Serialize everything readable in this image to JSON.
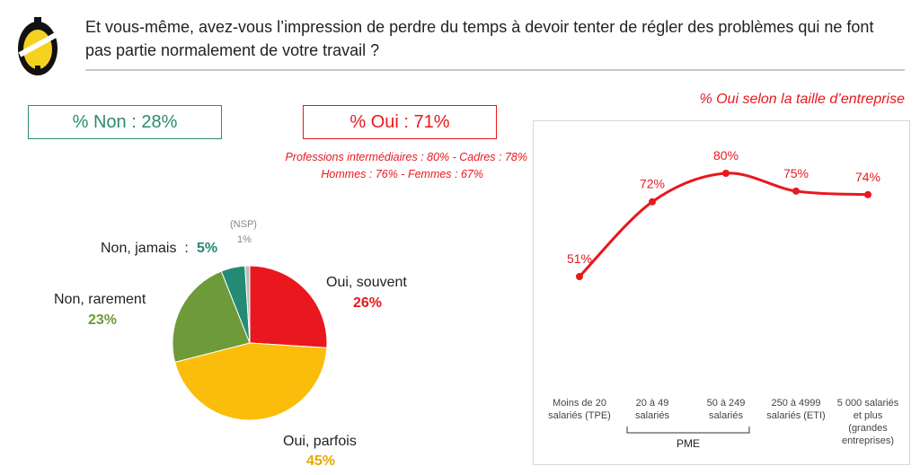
{
  "question": "Et vous-même, avez-vous l’impression de perdre du temps à devoir tenter de régler des problèmes qui ne font pas partie normalement de votre travail ?",
  "summary": {
    "non_label": "% Non : 28%",
    "oui_label": "% Oui : 71%",
    "oui_detail_1": "Professions intermédiaires : 80% - Cadres : 78%",
    "oui_detail_2": "Hommes : 76% - Femmes : 67%"
  },
  "colors": {
    "oui_souvent": "#e8181e",
    "oui_parfois": "#fbbd0b",
    "non_rarement": "#6e9a3a",
    "non_jamais": "#248a74",
    "nsp": "#bdbdbd",
    "line": "#e8181e"
  },
  "chart_data": [
    {
      "type": "pie",
      "slices": [
        {
          "label": "Oui, souvent",
          "value": 26,
          "value_label": "26%",
          "color": "#e8181e"
        },
        {
          "label": "Oui, parfois",
          "value": 45,
          "value_label": "45%",
          "color": "#fbbd0b"
        },
        {
          "label": "Non, rarement",
          "value": 23,
          "value_label": "23%",
          "color": "#6e9a3a"
        },
        {
          "label": "Non, jamais  :",
          "value": 5,
          "value_label": "5%",
          "color": "#248a74"
        },
        {
          "label": "(NSP)",
          "value": 1,
          "value_label": "1%",
          "color": "#bdbdbd"
        }
      ]
    },
    {
      "type": "line",
      "title": "% Oui selon la taille d’entreprise",
      "categories": [
        [
          "Moins de 20",
          "salariés (TPE)"
        ],
        [
          "20 à 49",
          "salariés"
        ],
        [
          "50 à 249",
          "salariés"
        ],
        [
          "250 à 4999",
          "salariés (ETI)"
        ],
        [
          "5 000 salariés",
          "et plus",
          "(grandes",
          "entreprises)"
        ]
      ],
      "values": [
        51,
        72,
        80,
        75,
        74
      ],
      "value_labels": [
        "51%",
        "72%",
        "80%",
        "75%",
        "74%"
      ],
      "group_label": "PME",
      "grid": false
    }
  ]
}
